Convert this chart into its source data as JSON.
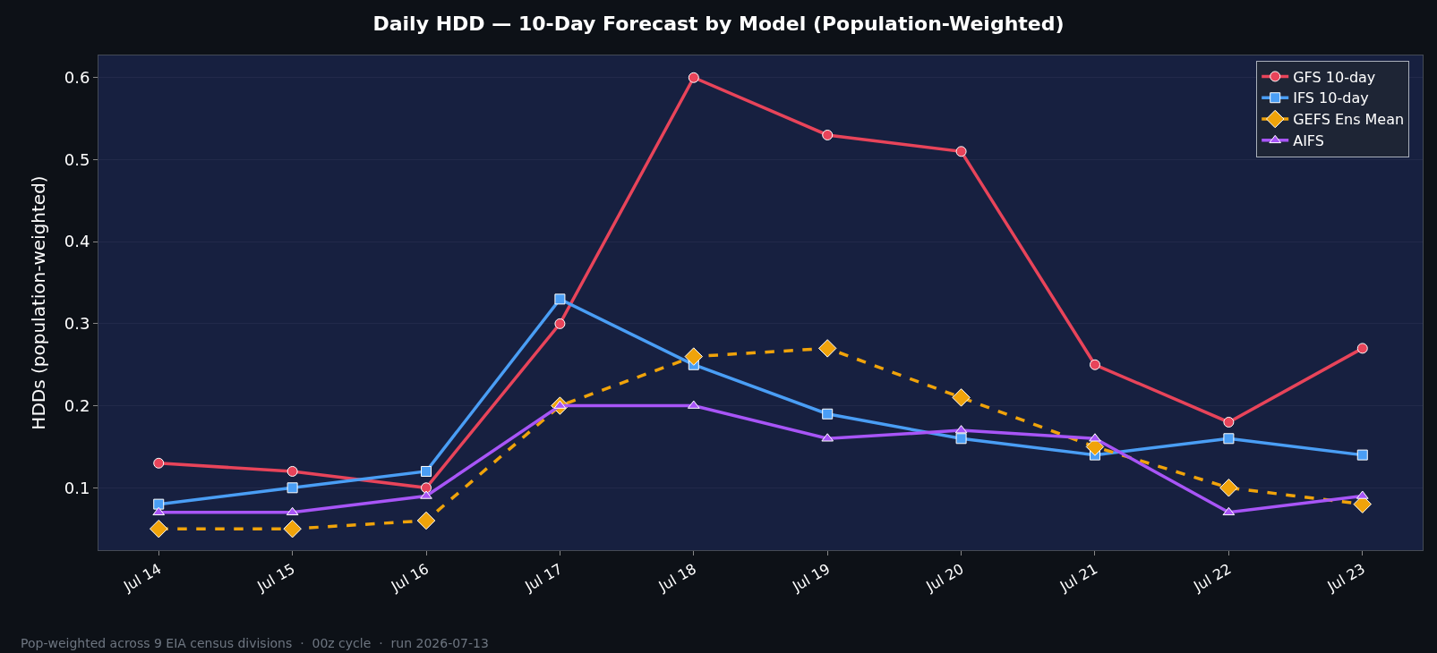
{
  "chart_data": {
    "type": "line",
    "title": "Daily HDD — 10-Day Forecast by Model (Population-Weighted)",
    "ylabel": "HDDs (population-weighted)",
    "categories": [
      "Jul 14",
      "Jul 15",
      "Jul 16",
      "Jul 17",
      "Jul 18",
      "Jul 19",
      "Jul 20",
      "Jul 21",
      "Jul 22",
      "Jul 23"
    ],
    "series": [
      {
        "name": "GFS 10-day",
        "color": "#e8445a",
        "marker": "circle",
        "line_style": "solid",
        "values": [
          0.13,
          0.12,
          0.1,
          0.3,
          0.6,
          0.53,
          0.51,
          0.25,
          0.18,
          0.27
        ]
      },
      {
        "name": "IFS 10-day",
        "color": "#4a9ef5",
        "marker": "square",
        "line_style": "solid",
        "values": [
          0.08,
          0.1,
          0.12,
          0.33,
          0.25,
          0.19,
          0.16,
          0.14,
          0.16,
          0.14
        ]
      },
      {
        "name": "GEFS Ens Mean",
        "color": "#f0a30a",
        "marker": "diamond",
        "line_style": "dashed",
        "values": [
          0.05,
          0.05,
          0.06,
          0.2,
          0.26,
          0.27,
          0.21,
          0.15,
          0.1,
          0.08
        ]
      },
      {
        "name": "AIFS",
        "color": "#a855f7",
        "marker": "triangle",
        "line_style": "solid",
        "values": [
          0.07,
          0.07,
          0.09,
          0.2,
          0.2,
          0.16,
          0.17,
          0.16,
          0.07,
          0.09
        ]
      }
    ],
    "ylim": [
      0.024,
      0.627
    ],
    "yticks": [
      0.1,
      0.2,
      0.3,
      0.4,
      0.5,
      0.6
    ],
    "grid": "y",
    "legend": "top right",
    "annotations": [
      "Pop-weighted across 9 EIA census divisions  ·  00z cycle  ·  run 2026-07-13"
    ]
  }
}
